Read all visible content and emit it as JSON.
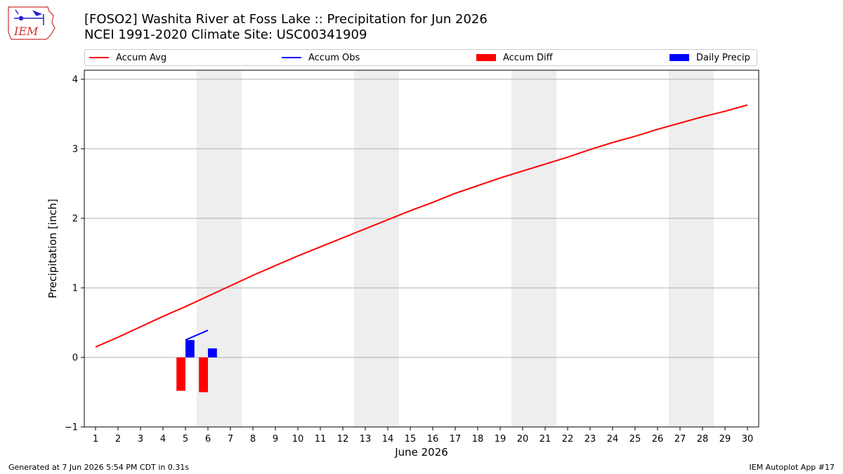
{
  "header": {
    "title_line1": "[FOSO2] Washita River at Foss Lake :: Precipitation for Jun 2026",
    "title_line2": "NCEI 1991-2020 Climate Site: USC00341909"
  },
  "logo": {
    "text": "IEM",
    "icon": "iowa-state-map-logo"
  },
  "footer": {
    "left": "Generated at 7 Jun 2026 5:54 PM CDT in 0.31s",
    "right": "IEM Autoplot App #17"
  },
  "colors": {
    "accum_avg": "#ff0000",
    "accum_obs": "#0000ff",
    "accum_diff": "#ff0000",
    "daily_precip": "#0000ff",
    "weekend_shade": "#eeeeee",
    "grid": "#b0b0b0"
  },
  "chart_data": {
    "type": "line",
    "xlabel": "June 2026",
    "ylabel": "Precipitation [inch]",
    "xlim": [
      0.5,
      30.5
    ],
    "ylim": [
      -1,
      4.13
    ],
    "yticks": [
      -1,
      0,
      1,
      2,
      3,
      4
    ],
    "ytick_labels": [
      "−1",
      "0",
      "1",
      "2",
      "3",
      "4"
    ],
    "xticks": [
      1,
      2,
      3,
      4,
      5,
      6,
      7,
      8,
      9,
      10,
      11,
      12,
      13,
      14,
      15,
      16,
      17,
      18,
      19,
      20,
      21,
      22,
      23,
      24,
      25,
      26,
      27,
      28,
      29,
      30
    ],
    "grid": "horizontal",
    "legend_position": "top",
    "weekend_shading": [
      [
        6,
        7
      ],
      [
        13,
        14
      ],
      [
        20,
        21
      ],
      [
        27,
        28
      ]
    ],
    "legend": [
      {
        "label": "Accum Avg",
        "kind": "line",
        "color": "#ff0000"
      },
      {
        "label": "Accum Obs",
        "kind": "line",
        "color": "#0000ff"
      },
      {
        "label": "Accum Diff",
        "kind": "bar",
        "color": "#ff0000"
      },
      {
        "label": "Daily Precip",
        "kind": "bar",
        "color": "#0000ff"
      }
    ],
    "series": [
      {
        "name": "Accum Avg",
        "x": [
          1,
          2,
          3,
          4,
          5,
          6,
          7,
          8,
          9,
          10,
          11,
          12,
          13,
          14,
          15,
          16,
          17,
          18,
          19,
          20,
          21,
          22,
          23,
          24,
          25,
          26,
          27,
          28,
          29,
          30
        ],
        "values": [
          0.15,
          0.29,
          0.44,
          0.59,
          0.73,
          0.88,
          1.03,
          1.18,
          1.32,
          1.46,
          1.59,
          1.72,
          1.85,
          1.98,
          2.11,
          2.23,
          2.36,
          2.47,
          2.58,
          2.68,
          2.78,
          2.88,
          2.99,
          3.09,
          3.18,
          3.28,
          3.37,
          3.46,
          3.54,
          3.63
        ]
      },
      {
        "name": "Accum Obs",
        "x": [
          5,
          6
        ],
        "values": [
          0.25,
          0.39
        ]
      },
      {
        "name": "Accum Diff",
        "x": [
          5,
          6
        ],
        "values": [
          -0.48,
          -0.5
        ]
      },
      {
        "name": "Daily Precip",
        "x": [
          5,
          6
        ],
        "values": [
          0.25,
          0.13
        ]
      }
    ]
  }
}
